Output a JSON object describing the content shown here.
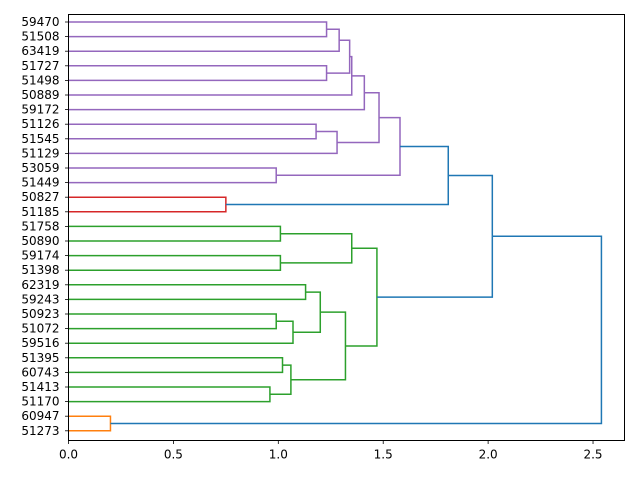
{
  "chart_data": {
    "type": "dendrogram",
    "orientation": "right",
    "leaves": [
      "59470",
      "51508",
      "63419",
      "51727",
      "51498",
      "50889",
      "59172",
      "51126",
      "51545",
      "51129",
      "53059",
      "51449",
      "50827",
      "51185",
      "51758",
      "50890",
      "59174",
      "51398",
      "62319",
      "59243",
      "50923",
      "51072",
      "59516",
      "51395",
      "60743",
      "51413",
      "51170",
      "60947",
      "51273"
    ],
    "xlim": [
      0.0,
      2.65
    ],
    "xticks": [
      0.0,
      0.5,
      1.0,
      1.5,
      2.0,
      2.5
    ],
    "xtick_labels": [
      "0.0",
      "0.5",
      "1.0",
      "1.5",
      "2.0",
      "2.5"
    ],
    "merges": [
      {
        "id": "m1",
        "left": "L0",
        "right": "L1",
        "height": 1.23,
        "color": "#9467bd"
      },
      {
        "id": "m2",
        "left": "m1",
        "right": "L2",
        "height": 1.29,
        "color": "#9467bd"
      },
      {
        "id": "m3",
        "left": "L3",
        "right": "L4",
        "height": 1.23,
        "color": "#9467bd"
      },
      {
        "id": "m4",
        "left": "m2",
        "right": "m3",
        "height": 1.34,
        "color": "#9467bd"
      },
      {
        "id": "m5",
        "left": "m4",
        "right": "L5",
        "height": 1.35,
        "color": "#9467bd"
      },
      {
        "id": "m6",
        "left": "m5",
        "right": "L6",
        "height": 1.41,
        "color": "#9467bd"
      },
      {
        "id": "m7",
        "left": "L7",
        "right": "L8",
        "height": 1.18,
        "color": "#9467bd"
      },
      {
        "id": "m8",
        "left": "m7",
        "right": "L9",
        "height": 1.28,
        "color": "#9467bd"
      },
      {
        "id": "m9",
        "left": "m6",
        "right": "m8",
        "height": 1.48,
        "color": "#9467bd"
      },
      {
        "id": "m10",
        "left": "L10",
        "right": "L11",
        "height": 0.99,
        "color": "#9467bd"
      },
      {
        "id": "m11",
        "left": "m9",
        "right": "m10",
        "height": 1.58,
        "color": "#9467bd"
      },
      {
        "id": "m12",
        "left": "L12",
        "right": "L13",
        "height": 0.75,
        "color": "#d62728"
      },
      {
        "id": "m13",
        "left": "m11",
        "right": "m12",
        "height": 1.81,
        "color": "#1f77b4"
      },
      {
        "id": "m14",
        "left": "L14",
        "right": "L15",
        "height": 1.01,
        "color": "#2ca02c"
      },
      {
        "id": "m15",
        "left": "L16",
        "right": "L17",
        "height": 1.01,
        "color": "#2ca02c"
      },
      {
        "id": "m16",
        "left": "m14",
        "right": "m15",
        "height": 1.35,
        "color": "#2ca02c"
      },
      {
        "id": "m17",
        "left": "L18",
        "right": "L19",
        "height": 1.13,
        "color": "#2ca02c"
      },
      {
        "id": "m18",
        "left": "L20",
        "right": "L21",
        "height": 0.99,
        "color": "#2ca02c"
      },
      {
        "id": "m19",
        "left": "m18",
        "right": "L22",
        "height": 1.07,
        "color": "#2ca02c"
      },
      {
        "id": "m20",
        "left": "m17",
        "right": "m19",
        "height": 1.2,
        "color": "#2ca02c"
      },
      {
        "id": "m21",
        "left": "L23",
        "right": "L24",
        "height": 1.02,
        "color": "#2ca02c"
      },
      {
        "id": "m22",
        "left": "L25",
        "right": "L26",
        "height": 0.96,
        "color": "#2ca02c"
      },
      {
        "id": "m23",
        "left": "m21",
        "right": "m22",
        "height": 1.06,
        "color": "#2ca02c"
      },
      {
        "id": "m24",
        "left": "m20",
        "right": "m23",
        "height": 1.32,
        "color": "#2ca02c"
      },
      {
        "id": "m25",
        "left": "m16",
        "right": "m24",
        "height": 1.47,
        "color": "#2ca02c"
      },
      {
        "id": "m26",
        "left": "m13",
        "right": "m25",
        "height": 2.02,
        "color": "#1f77b4"
      },
      {
        "id": "m27",
        "left": "L27",
        "right": "L28",
        "height": 0.2,
        "color": "#ff7f0e"
      },
      {
        "id": "m28",
        "left": "m26",
        "right": "m27",
        "height": 2.54,
        "color": "#1f77b4"
      }
    ],
    "grid": false,
    "legend": false
  }
}
